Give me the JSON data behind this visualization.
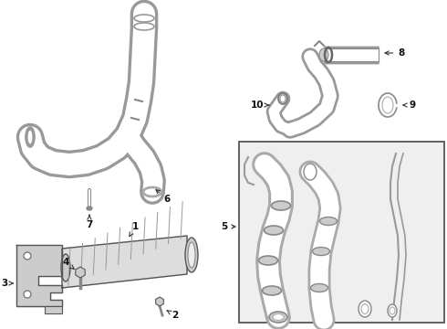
{
  "bg_color": "#ffffff",
  "line_color": "#333333",
  "box_bg": "#e8e8e8",
  "box_line": "#555555",
  "figsize": [
    4.9,
    3.6
  ],
  "dpi": 100,
  "lw": 1.1,
  "lw_thin": 0.7,
  "lw_tube": 1.0,
  "font_size": 7.5
}
